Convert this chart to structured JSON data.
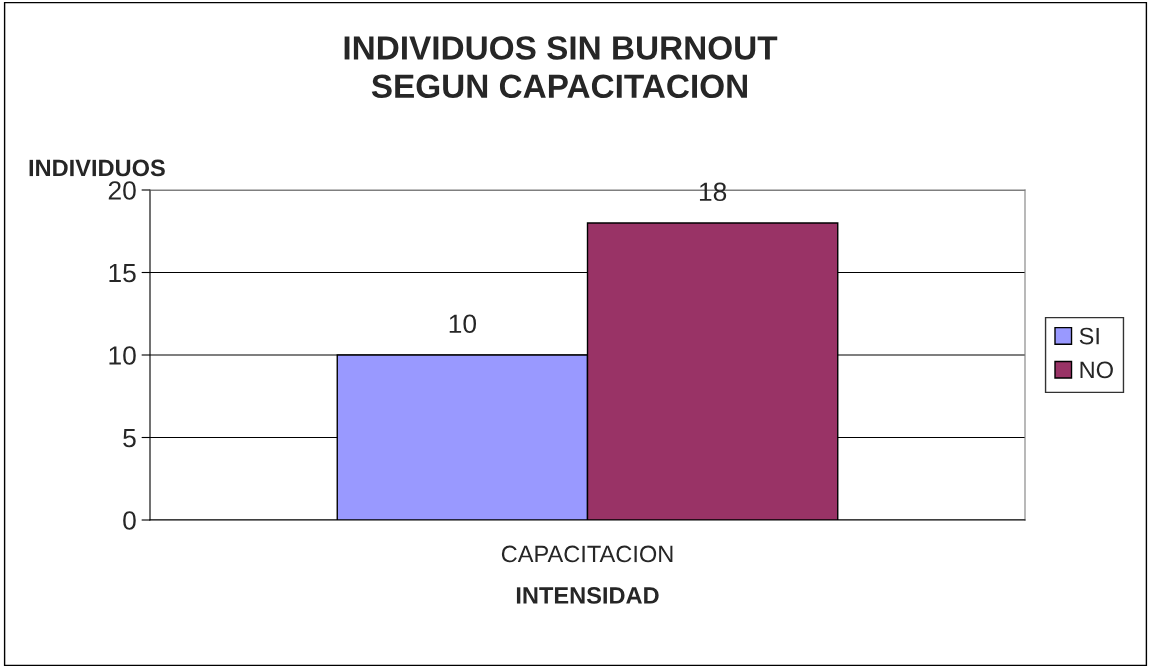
{
  "chart_data": {
    "type": "bar",
    "title": "INDIVIDUOS SIN BURNOUT\nSEGUN CAPACITACION",
    "xlabel": "INTENSIDAD",
    "ylabel": "INDIVIDUOS",
    "categories": [
      "CAPACITACION"
    ],
    "series": [
      {
        "name": "SI",
        "color": "#9999ff",
        "values": [
          10
        ]
      },
      {
        "name": "NO",
        "color": "#993366",
        "values": [
          18
        ]
      }
    ],
    "ylim": [
      0,
      20
    ],
    "yticks": [
      0,
      5,
      10,
      15,
      20
    ],
    "grid": "y",
    "legend": "right",
    "data_labels": true
  }
}
